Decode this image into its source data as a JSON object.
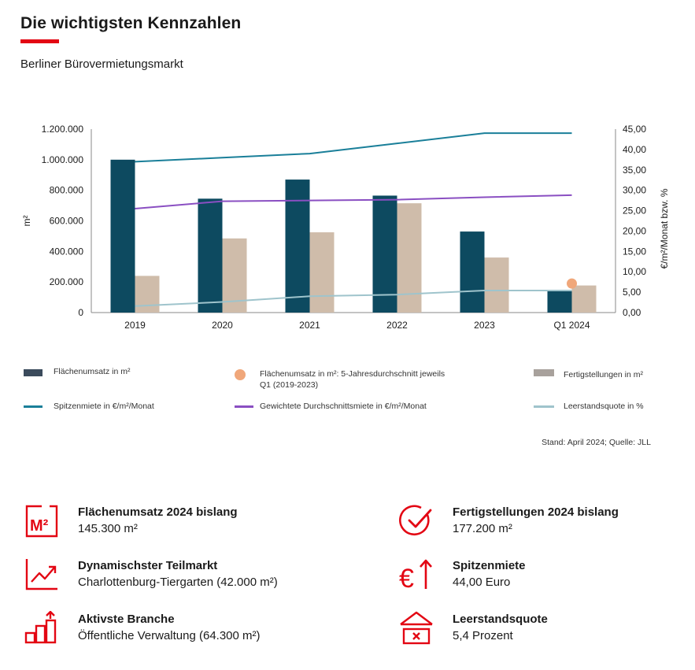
{
  "header": {
    "title": "Die wichtigsten Kennzahlen",
    "subtitle": "Berliner Bürovermietungsmarkt"
  },
  "colors": {
    "accent": "#e30613",
    "umsatz": "#0d4a60",
    "fertig": "#cfbcaa",
    "spitze": "#1a7f99",
    "durchschnitt": "#8a4fc2",
    "leerstand": "#9fc4cc",
    "avg_dot": "#f0a77a"
  },
  "chart_data": {
    "type": "bar",
    "categories": [
      "2019",
      "2020",
      "2021",
      "2022",
      "2023",
      "Q1 2024"
    ],
    "ylabel_left": "m²",
    "ylabel_right": "€/m²/Monat bzw. %",
    "ylim_left": [
      0,
      1200000
    ],
    "ylim_right": [
      0,
      45
    ],
    "left_ticks": [
      "1.200.000",
      "1.000.000",
      "800.000",
      "600.000",
      "400.000",
      "200.000",
      "0"
    ],
    "right_ticks": [
      "45,00",
      "40,00",
      "35,00",
      "30,00",
      "25,00",
      "20,00",
      "15,00",
      "10,00",
      "5,00",
      "0,00"
    ],
    "series": [
      {
        "name": "Flächenumsatz in m²",
        "type": "bar",
        "axis": "left",
        "values": [
          1000000,
          745000,
          870000,
          765000,
          530000,
          145300
        ]
      },
      {
        "name": "Fertigstellungen in m²",
        "type": "bar",
        "axis": "left",
        "values": [
          240000,
          485000,
          525000,
          715000,
          360000,
          177200
        ]
      },
      {
        "name": "Spitzenmiete in €/m²/Monat",
        "type": "line",
        "axis": "right",
        "values": [
          37.0,
          38.0,
          39.0,
          41.5,
          44.0,
          44.0
        ]
      },
      {
        "name": "Gewichtete Durchschnittsmiete in €/m²/Monat",
        "type": "line",
        "axis": "right",
        "values": [
          25.5,
          27.3,
          27.5,
          27.7,
          28.3,
          28.8
        ]
      },
      {
        "name": "Leerstandsquote in %",
        "type": "line",
        "axis": "right",
        "values": [
          1.6,
          2.6,
          4.0,
          4.4,
          5.4,
          5.4
        ]
      },
      {
        "name": "Flächenumsatz in m²: 5-Jahresdurchschnitt jeweils Q1 (2019-2023)",
        "type": "point",
        "axis": "left",
        "category_index": 5,
        "value": 190000
      }
    ],
    "legend": [
      {
        "label": "Flächenumsatz in m²",
        "kind": "box",
        "color": "#3b4b5c"
      },
      {
        "label": "Flächenumsatz in m²: 5-Jahresdurchschnitt jeweils Q1 (2019-2023)",
        "kind": "dot",
        "color": "#f0a77a"
      },
      {
        "label": "Fertigstellungen in m²",
        "kind": "box",
        "color": "#a8a19c"
      },
      {
        "label": "Spitzenmiete in €/m²/Monat",
        "kind": "line",
        "color": "#1a7f99"
      },
      {
        "label": "Gewichtete Durchschnittsmiete in €/m²/Monat",
        "kind": "line",
        "color": "#8a4fc2"
      },
      {
        "label": "Leerstandsquote in %",
        "kind": "line",
        "color": "#9fc4cc"
      }
    ],
    "grid": false
  },
  "source": "Stand: April 2024; Quelle: JLL",
  "kpis": [
    {
      "icon": "m2-square-icon",
      "label": "Flächenumsatz 2024 bislang",
      "value": "145.300 m²"
    },
    {
      "icon": "check-circle-icon",
      "label": "Fertigstellungen 2024 bislang",
      "value": "177.200 m²"
    },
    {
      "icon": "trend-up-icon",
      "label": "Dynamischster Teilmarkt",
      "value": "Charlottenburg-Tiergarten (42.000 m²)"
    },
    {
      "icon": "euro-up-icon",
      "label": "Spitzenmiete",
      "value": "44,00 Euro"
    },
    {
      "icon": "bar-growth-icon",
      "label": "Aktivste Branche",
      "value": "Öffentliche Verwaltung (64.300 m²)"
    },
    {
      "icon": "vacancy-sign-icon",
      "label": "Leerstandsquote",
      "value": "5,4 Prozent"
    }
  ]
}
